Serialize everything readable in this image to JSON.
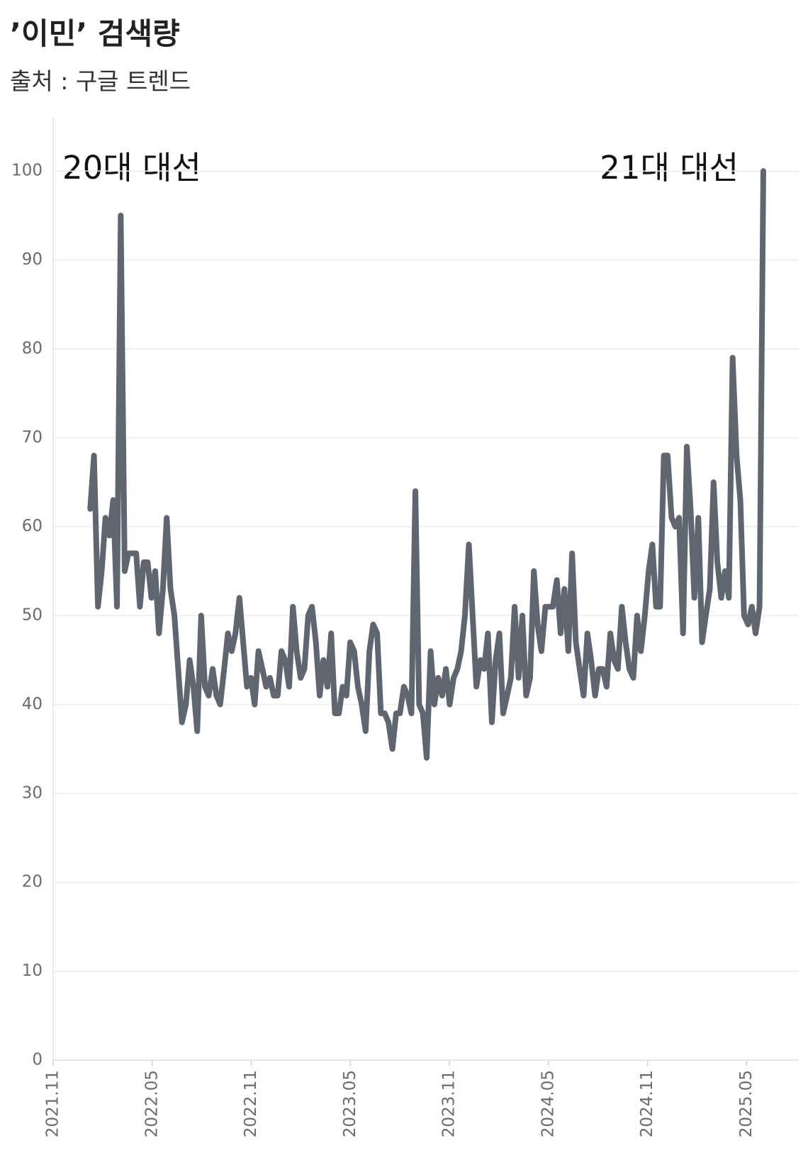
{
  "chart_data": {
    "type": "line",
    "title": "’이민’ 검색량",
    "subtitle": "출처 : 구글 트렌드",
    "annotations": [
      "20대 대선",
      "21대 대선"
    ],
    "color": "#5f6670",
    "grid": true,
    "xlim": [
      2021.833,
      2025.596
    ],
    "xticks": [
      {
        "value": 2021.833,
        "label": "2021.11"
      },
      {
        "value": 2022.333,
        "label": "2022.05"
      },
      {
        "value": 2022.833,
        "label": "2022.11"
      },
      {
        "value": 2023.333,
        "label": "2023.05"
      },
      {
        "value": 2023.833,
        "label": "2023.11"
      },
      {
        "value": 2024.333,
        "label": "2024.05"
      },
      {
        "value": 2024.833,
        "label": "2024.11"
      },
      {
        "value": 2025.333,
        "label": "2025.05"
      }
    ],
    "ylim": [
      0,
      106
    ],
    "yticks": [
      0,
      10,
      20,
      30,
      40,
      50,
      60,
      70,
      80,
      90,
      100
    ],
    "x": [
      2022.02,
      2022.039,
      2022.059,
      2022.078,
      2022.097,
      2022.117,
      2022.136,
      2022.155,
      2022.174,
      2022.194,
      2022.213,
      2022.232,
      2022.252,
      2022.271,
      2022.29,
      2022.31,
      2022.329,
      2022.348,
      2022.367,
      2022.387,
      2022.406,
      2022.425,
      2022.445,
      2022.464,
      2022.483,
      2022.503,
      2022.522,
      2022.541,
      2022.56,
      2022.58,
      2022.599,
      2022.618,
      2022.638,
      2022.657,
      2022.676,
      2022.696,
      2022.715,
      2022.734,
      2022.753,
      2022.773,
      2022.792,
      2022.811,
      2022.831,
      2022.85,
      2022.869,
      2022.889,
      2022.908,
      2022.927,
      2022.946,
      2022.966,
      2022.985,
      2023.004,
      2023.024,
      2023.043,
      2023.062,
      2023.082,
      2023.101,
      2023.12,
      2023.139,
      2023.159,
      2023.178,
      2023.197,
      2023.217,
      2023.236,
      2023.255,
      2023.275,
      2023.294,
      2023.313,
      2023.332,
      2023.352,
      2023.371,
      2023.39,
      2023.41,
      2023.429,
      2023.448,
      2023.468,
      2023.487,
      2023.506,
      2023.525,
      2023.545,
      2023.564,
      2023.583,
      2023.603,
      2023.622,
      2023.641,
      2023.661,
      2023.68,
      2023.699,
      2023.718,
      2023.738,
      2023.757,
      2023.776,
      2023.796,
      2023.815,
      2023.834,
      2023.854,
      2023.873,
      2023.892,
      2023.911,
      2023.931,
      2023.95,
      2023.969,
      2023.989,
      2024.008,
      2024.027,
      2024.047,
      2024.066,
      2024.085,
      2024.104,
      2024.124,
      2024.143,
      2024.162,
      2024.182,
      2024.201,
      2024.22,
      2024.24,
      2024.259,
      2024.278,
      2024.297,
      2024.317,
      2024.336,
      2024.355,
      2024.375,
      2024.394,
      2024.413,
      2024.433,
      2024.452,
      2024.471,
      2024.49,
      2024.51,
      2024.529,
      2024.548,
      2024.568,
      2024.587,
      2024.606,
      2024.626,
      2024.645,
      2024.664,
      2024.683,
      2024.703,
      2024.722,
      2024.741,
      2024.761,
      2024.78,
      2024.799,
      2024.819,
      2024.838,
      2024.857,
      2024.876,
      2024.896,
      2024.915,
      2024.934,
      2024.954,
      2024.973,
      2024.992,
      2025.012,
      2025.031,
      2025.05,
      2025.069,
      2025.089,
      2025.108,
      2025.127,
      2025.147,
      2025.166,
      2025.185,
      2025.205,
      2025.224,
      2025.243,
      2025.262,
      2025.282,
      2025.301,
      2025.32,
      2025.34,
      2025.359,
      2025.378,
      2025.398,
      2025.417
    ],
    "values": [
      62,
      68,
      51,
      55,
      61,
      59,
      63,
      51,
      95,
      55,
      57,
      57,
      57,
      51,
      56,
      56,
      52,
      55,
      48,
      53,
      61,
      53,
      50,
      44,
      38,
      40,
      45,
      42,
      37,
      50,
      42,
      41,
      44,
      41,
      40,
      44,
      48,
      46,
      48,
      52,
      47,
      42,
      43,
      40,
      46,
      44,
      42,
      43,
      41,
      41,
      46,
      45,
      42,
      51,
      46,
      43,
      44,
      50,
      51,
      47,
      41,
      45,
      42,
      48,
      39,
      39,
      42,
      41,
      47,
      46,
      42,
      40,
      37,
      46,
      49,
      48,
      39,
      39,
      38,
      35,
      39,
      39,
      42,
      41,
      39,
      64,
      40,
      39,
      34,
      46,
      40,
      43,
      41,
      44,
      40,
      43,
      44,
      46,
      50,
      58,
      50,
      42,
      45,
      44,
      48,
      38,
      45,
      48,
      39,
      41,
      43,
      51,
      43,
      50,
      41,
      43,
      55,
      49,
      46,
      51,
      51,
      51,
      54,
      48,
      53,
      46,
      57,
      47,
      44,
      41,
      48,
      45,
      41,
      44,
      44,
      42,
      48,
      45,
      44,
      51,
      47,
      44,
      43,
      50,
      46,
      50,
      55,
      58,
      51,
      51,
      68,
      68,
      61,
      60,
      61,
      48,
      69,
      62,
      52,
      61,
      47,
      50,
      53,
      65,
      56,
      52,
      55,
      52,
      79,
      68,
      63,
      50,
      49,
      51,
      48,
      51,
      100
    ]
  }
}
